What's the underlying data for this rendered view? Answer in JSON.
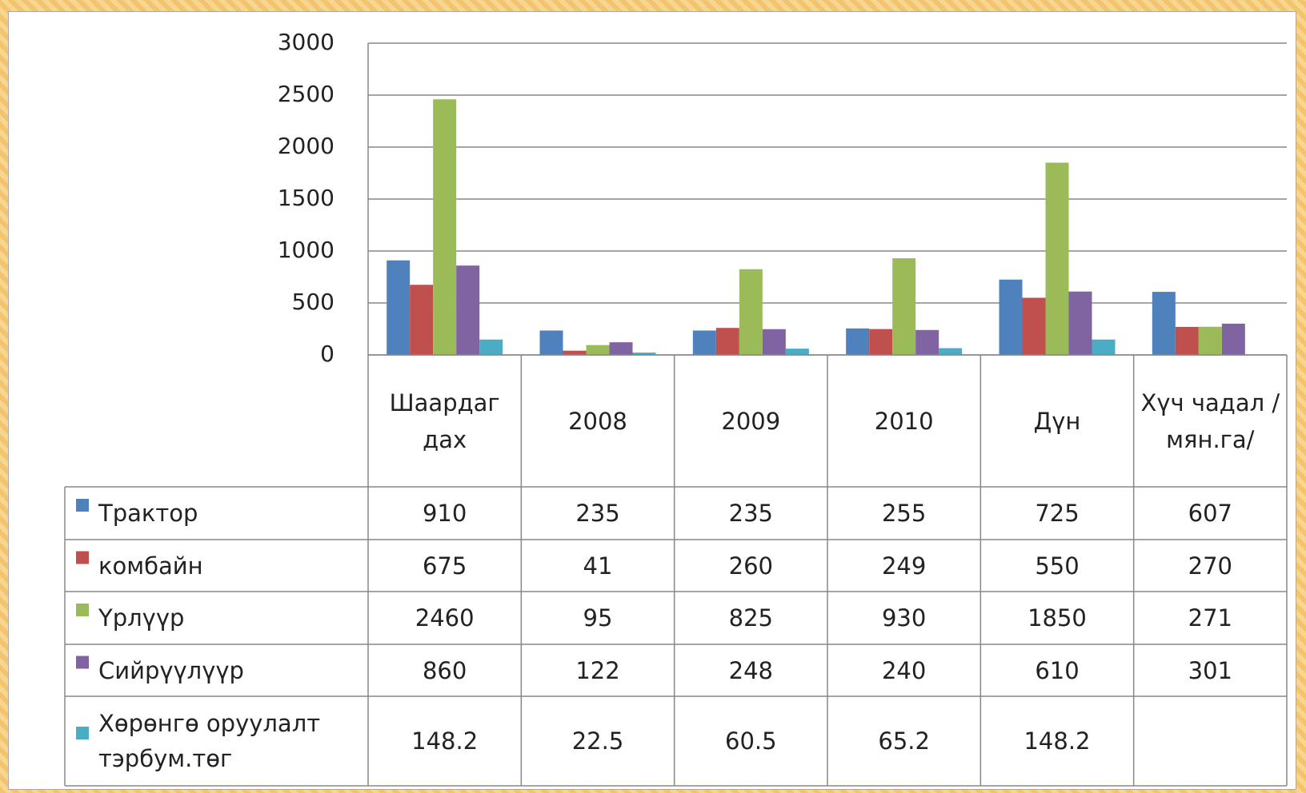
{
  "chart_data": {
    "type": "bar",
    "categories": [
      "Шаардаг дах",
      "2008",
      "2009",
      "2010",
      "Дүн",
      "Хүч чадал /мян.га/"
    ],
    "series": [
      {
        "name": "Трактор",
        "color": "#4f81bd",
        "values": [
          910,
          235,
          235,
          255,
          725,
          607
        ]
      },
      {
        "name": "комбайн",
        "color": "#c0504d",
        "values": [
          675,
          41,
          260,
          249,
          550,
          270
        ]
      },
      {
        "name": "Үрлүүр",
        "color": "#9bbb59",
        "values": [
          2460,
          95,
          825,
          930,
          1850,
          271
        ]
      },
      {
        "name": "Сийрүүлүүр",
        "color": "#8064a2",
        "values": [
          860,
          122,
          248,
          240,
          610,
          301
        ]
      },
      {
        "name": "Хөрөнгө оруулалт тэрбум.төг",
        "color": "#4bacc6",
        "values": [
          148.2,
          22.5,
          60.5,
          65.2,
          148.2,
          null
        ]
      }
    ],
    "ylim": [
      0,
      3000
    ],
    "yticks": [
      0,
      500,
      1000,
      1500,
      2000,
      2500,
      3000
    ],
    "grid": true
  }
}
